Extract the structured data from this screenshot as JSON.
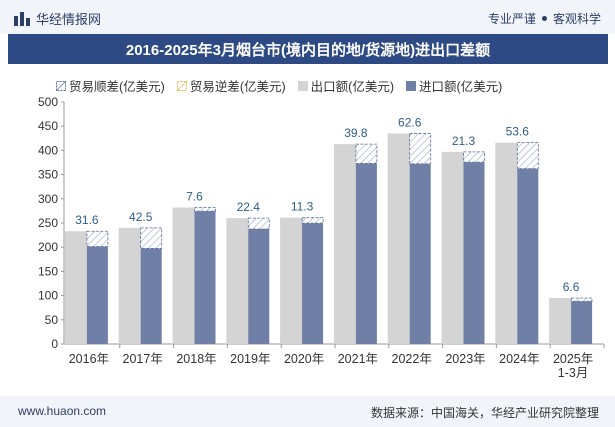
{
  "header": {
    "brand": "华经情报网",
    "tag1": "专业严谨",
    "tag2": "客观科学"
  },
  "title": "2016-2025年3月烟台市(境内目的地/货源地)进出口差额",
  "legend": {
    "surplus": "贸易顺差(亿美元)",
    "deficit": "贸易逆差(亿美元)",
    "export": "出口额(亿美元)",
    "import": "进口额(亿美元)"
  },
  "footer": {
    "url": "www.huaon.com",
    "source": "数据来源：中国海关，华经产业研究院整理"
  },
  "colors": {
    "export": "#d4d4d4",
    "import": "#6f7fa6",
    "surplus_stroke": "#5a6f9e",
    "label": "#2e5c8a",
    "title_bg": "#2e4a84"
  },
  "chart_data": {
    "type": "bar",
    "categories": [
      "2016年",
      "2017年",
      "2018年",
      "2019年",
      "2020年",
      "2021年",
      "2022年",
      "2023年",
      "2024年",
      "2025年\n1-3月"
    ],
    "series": [
      {
        "name": "出口额(亿美元)",
        "values": [
          233,
          240,
          282,
          260,
          261,
          413,
          435,
          397,
          416,
          95
        ]
      },
      {
        "name": "进口额(亿美元)",
        "values": [
          201.4,
          197.5,
          274.4,
          237.6,
          249.7,
          373.2,
          372.4,
          375.7,
          362.4,
          88.4
        ]
      },
      {
        "name": "贸易顺差(亿美元)",
        "values": [
          31.6,
          42.5,
          7.6,
          22.4,
          11.3,
          39.8,
          62.6,
          21.3,
          53.6,
          6.6
        ]
      }
    ],
    "ylim": [
      0,
      500
    ],
    "yticks": [
      0,
      50,
      100,
      150,
      200,
      250,
      300,
      350,
      400,
      450,
      500
    ],
    "grid": false,
    "legend_position": "top-left"
  }
}
